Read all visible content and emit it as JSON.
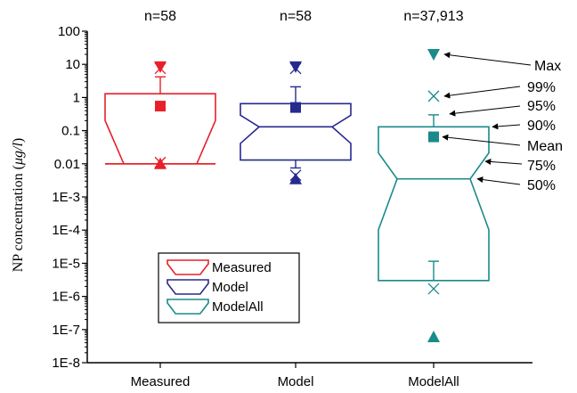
{
  "chart_data": {
    "type": "box",
    "ylabel_prefix": "NP concentration (",
    "ylabel_unit": "μg/l",
    "ylabel_suffix": ")",
    "yscale": "log",
    "ylim": [
      1e-08,
      100
    ],
    "y_ticks": [
      {
        "value": 100,
        "label": "100"
      },
      {
        "value": 10,
        "label": "10"
      },
      {
        "value": 1,
        "label": "1"
      },
      {
        "value": 0.1,
        "label": "0.1"
      },
      {
        "value": 0.01,
        "label": "0.01"
      },
      {
        "value": 0.001,
        "label": "1E-3"
      },
      {
        "value": 0.0001,
        "label": "1E-4"
      },
      {
        "value": 1e-05,
        "label": "1E-5"
      },
      {
        "value": 1e-06,
        "label": "1E-6"
      },
      {
        "value": 1e-07,
        "label": "1E-7"
      },
      {
        "value": 1e-08,
        "label": "1E-8"
      }
    ],
    "categories": [
      "Measured",
      "Model",
      "ModelAll"
    ],
    "series": [
      {
        "name": "Measured",
        "n_label": "n=58",
        "color": "#e8202a",
        "stats": {
          "min": 0.01,
          "p1": 0.011,
          "p5": 0.01,
          "p25": 0.01,
          "p50": 0.01,
          "p75": 0.35,
          "mean": 0.55,
          "p95": 1.3,
          "p99": 7.5,
          "max": 8.5
        },
        "whisker_upper": 4.2
      },
      {
        "name": "Model",
        "n_label": "n=58",
        "color": "#262a8e",
        "stats": {
          "min": 0.0035,
          "p1": 0.0045,
          "p5": 0.013,
          "p25": 0.013,
          "p50": 0.13,
          "p75": 0.3,
          "mean": 0.5,
          "p95": 0.65,
          "p99": 7.5,
          "max": 8.5
        },
        "whisker_upper": 2.1,
        "whisker_lower": 0.0075
      },
      {
        "name": "ModelAll",
        "n_label": "n=37,913",
        "color": "#1a8a8a",
        "stats": {
          "min": 6e-08,
          "p1": 1.7e-06,
          "p5": 3e-06,
          "p25": 3e-06,
          "p50": 0.0035,
          "p75": 0.025,
          "mean": 0.065,
          "p95": 0.13,
          "p99": 1.1,
          "max": 20
        },
        "whisker_upper": 0.3,
        "whisker_lower": 1.15e-05
      }
    ],
    "legend": {
      "position": "bottom-center",
      "entries": [
        "Measured",
        "Model",
        "ModelAll"
      ]
    },
    "annotations": [
      "Max",
      "99%",
      "95%",
      "90%",
      "Mean",
      "75%",
      "50%"
    ],
    "grid": false
  }
}
